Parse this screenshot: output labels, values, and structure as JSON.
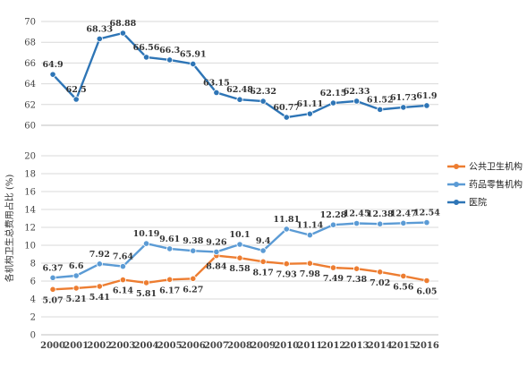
{
  "chart_data": {
    "type": "line",
    "ylabel": "各机构卫生总费用占比 (%)",
    "x": [
      "2000",
      "2001",
      "2002",
      "2003",
      "2004",
      "2005",
      "2006",
      "2007",
      "2008",
      "2009",
      "2010",
      "2011",
      "2012",
      "2013",
      "2014",
      "2015",
      "2016"
    ],
    "upper_ylim": [
      60,
      70
    ],
    "upper_yticks": [
      60,
      62,
      64,
      66,
      68,
      70
    ],
    "lower_ylim": [
      0,
      20
    ],
    "lower_yticks": [
      0,
      2,
      4,
      6,
      8,
      10,
      12,
      14,
      16,
      18,
      20
    ],
    "grid": true,
    "legend_position": "right",
    "series": [
      {
        "name": "公共卫生机构",
        "color": "#ed7d31",
        "panel": "lower",
        "label_position": "below",
        "values": [
          5.07,
          5.21,
          5.41,
          6.14,
          5.81,
          6.17,
          6.27,
          8.84,
          8.58,
          8.17,
          7.93,
          7.98,
          7.49,
          7.38,
          7.02,
          6.56,
          6.05
        ]
      },
      {
        "name": "药品零售机构",
        "color": "#5b9bd5",
        "panel": "lower",
        "label_position": "above",
        "values": [
          6.37,
          6.6,
          7.92,
          7.64,
          10.19,
          9.61,
          9.38,
          9.26,
          10.1,
          9.4,
          11.81,
          11.14,
          12.28,
          12.45,
          12.38,
          12.47,
          12.54
        ]
      },
      {
        "name": "医院",
        "color": "#2e75b6",
        "panel": "upper",
        "label_position": "above",
        "values": [
          64.9,
          62.5,
          68.33,
          68.88,
          66.56,
          66.3,
          65.91,
          63.15,
          62.48,
          62.32,
          60.77,
          61.11,
          62.15,
          62.33,
          61.52,
          61.73,
          61.9
        ]
      }
    ]
  }
}
